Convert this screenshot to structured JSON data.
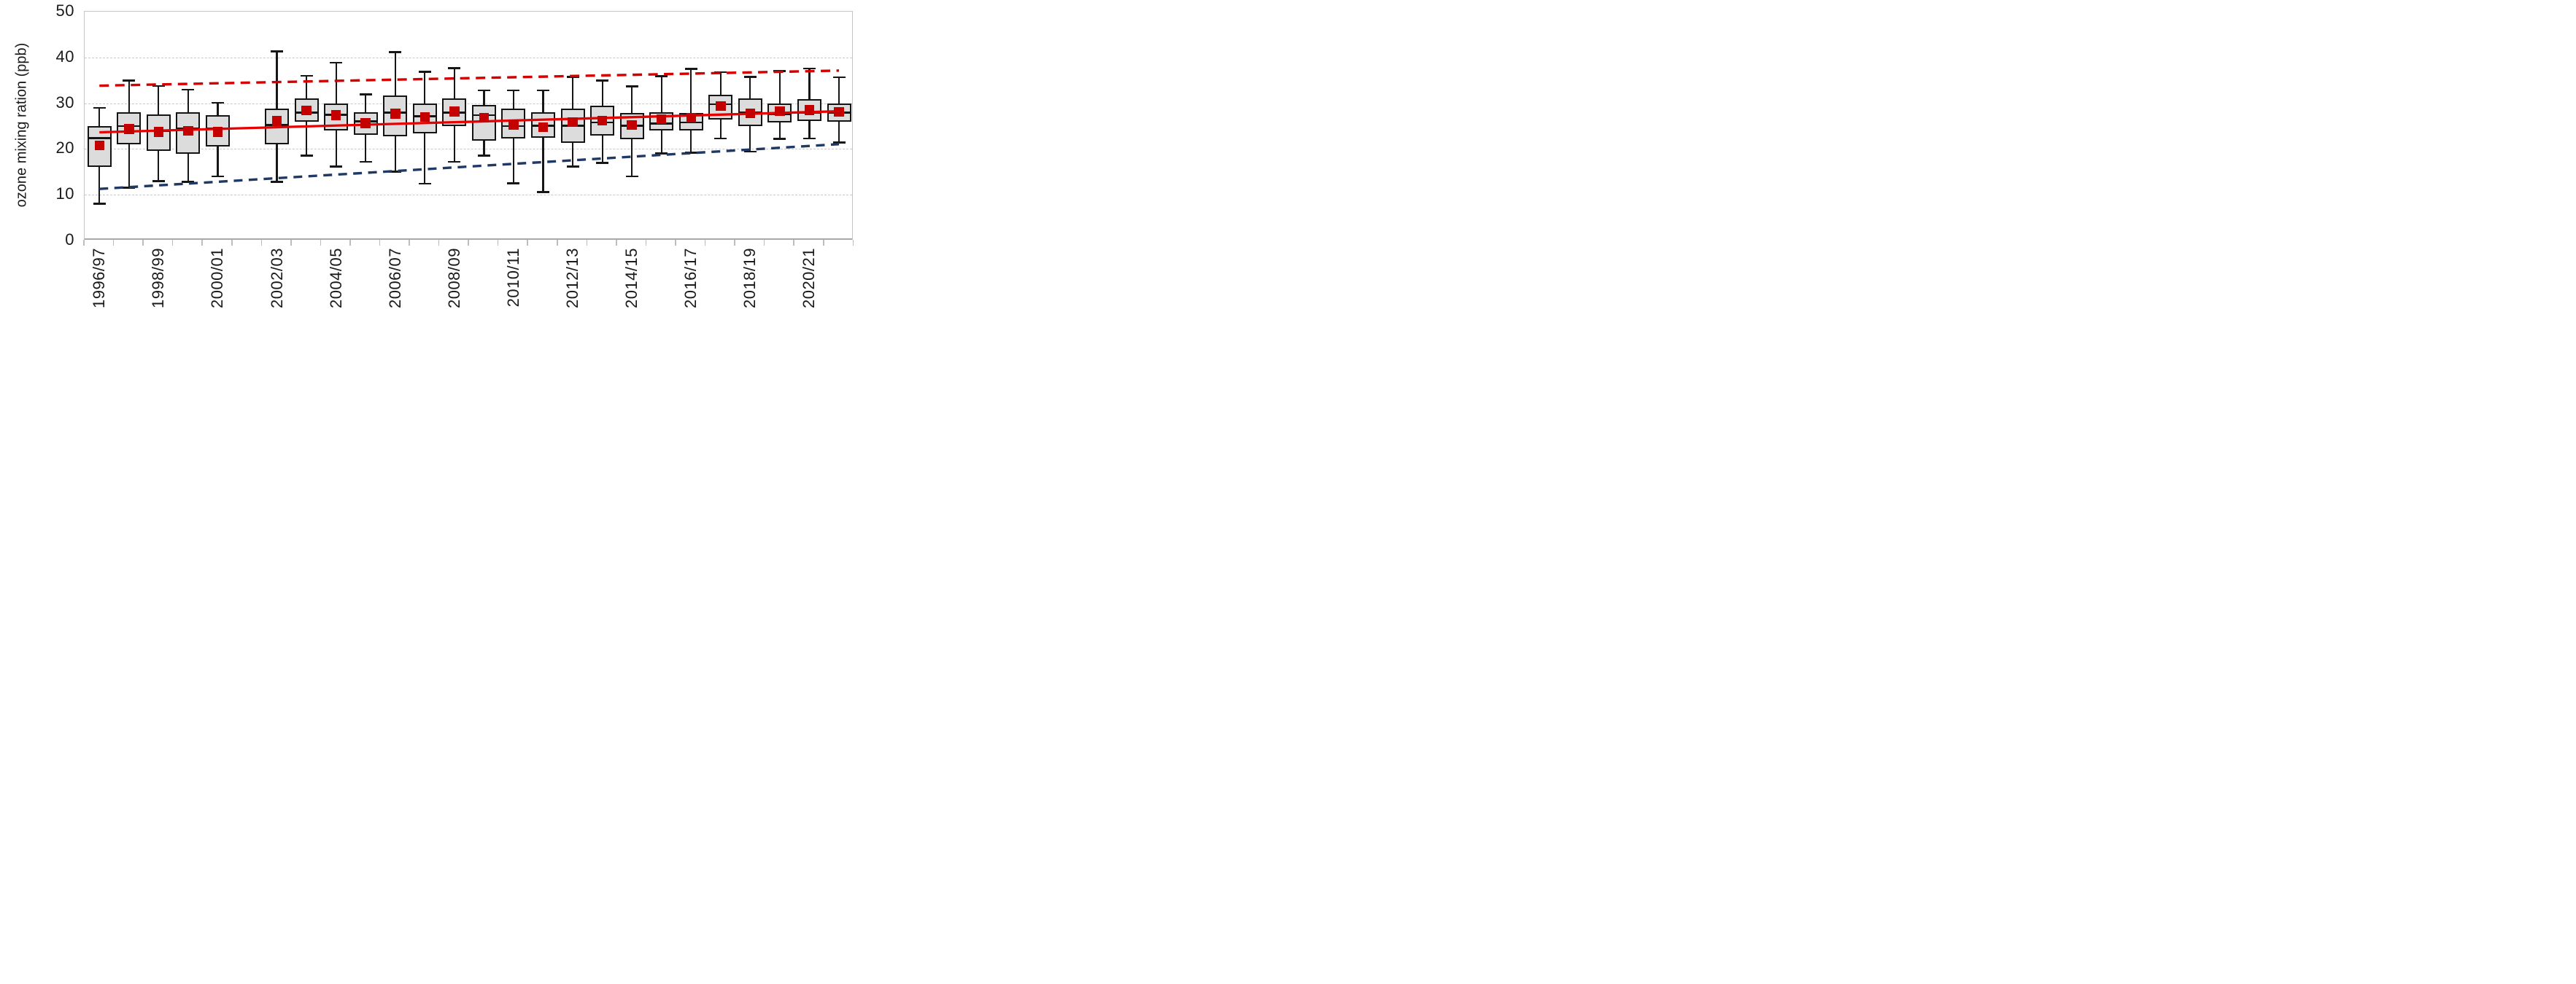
{
  "page": {
    "background": "#ffffff"
  },
  "chart_data": {
    "type": "box",
    "title": "",
    "xlabel": "",
    "ylabel": "ozone mixing ration (ppb)",
    "ylim": [
      0,
      50
    ],
    "yticks": [
      0,
      10,
      20,
      30,
      40,
      50
    ],
    "gridlines_at": [
      10,
      20,
      30,
      40
    ],
    "grid_style": "dashed",
    "legend_position": "none",
    "x_label_step": 2,
    "x_labels_shown": [
      "1996/97",
      "1998/99",
      "2000/01",
      "2002/03",
      "2004/05",
      "2006/07",
      "2008/09",
      "2010/11",
      "2012/13",
      "2014/15",
      "2016/17",
      "2018/19",
      "2020/21"
    ],
    "boxes": [
      {
        "year": "1996/97",
        "min": 8,
        "q1": 16,
        "median": 22.4,
        "mean": 20.8,
        "q3": 25,
        "max": 29
      },
      {
        "year": "1997/98",
        "min": 11.5,
        "q1": 21,
        "median": 25,
        "mean": 24.4,
        "q3": 28,
        "max": 35
      },
      {
        "year": "1998/99",
        "min": 13,
        "q1": 19.5,
        "median": 24,
        "mean": 23.7,
        "q3": 27.5,
        "max": 33.8
      },
      {
        "year": "1999/00",
        "min": 12.8,
        "q1": 19,
        "median": 24.4,
        "mean": 24,
        "q3": 28,
        "max": 33
      },
      {
        "year": "2000/01",
        "min": 14,
        "q1": 20.5,
        "median": 24.4,
        "mean": 23.7,
        "q3": 27.4,
        "max": 30.1
      },
      {
        "year": "2001/02",
        "min": null,
        "q1": null,
        "median": null,
        "mean": null,
        "q3": null,
        "max": null
      },
      {
        "year": "2002/03",
        "min": 12.8,
        "q1": 21,
        "median": 25.2,
        "mean": 26.1,
        "q3": 28.8,
        "max": 41.4
      },
      {
        "year": "2003/04",
        "min": 18.5,
        "q1": 26,
        "median": 28,
        "mean": 28.4,
        "q3": 31,
        "max": 36
      },
      {
        "year": "2004/05",
        "min": 16.2,
        "q1": 24.1,
        "median": 27.5,
        "mean": 27.4,
        "q3": 30,
        "max": 38.9
      },
      {
        "year": "2005/06",
        "min": 17.2,
        "q1": 23.1,
        "median": 26,
        "mean": 25.6,
        "q3": 28,
        "max": 31.9
      },
      {
        "year": "2006/07",
        "min": 15,
        "q1": 22.8,
        "median": 28,
        "mean": 27.7,
        "q3": 31.7,
        "max": 41.2
      },
      {
        "year": "2007/08",
        "min": 12.4,
        "q1": 23.4,
        "median": 27.2,
        "mean": 27,
        "q3": 30,
        "max": 36.9
      },
      {
        "year": "2008/09",
        "min": 17.2,
        "q1": 25,
        "median": 27.9,
        "mean": 28.2,
        "q3": 31,
        "max": 37.7
      },
      {
        "year": "2009/10",
        "min": 18.5,
        "q1": 21.8,
        "median": 27.4,
        "mean": 26.8,
        "q3": 29.7,
        "max": 32.8
      },
      {
        "year": "2010/11",
        "min": 12.5,
        "q1": 22.3,
        "median": 25,
        "mean": 25.3,
        "q3": 28.9,
        "max": 32.8
      },
      {
        "year": "2011/12",
        "min": 10.6,
        "q1": 22.5,
        "median": 25.1,
        "mean": 24.8,
        "q3": 28,
        "max": 32.8
      },
      {
        "year": "2012/13",
        "min": 16.2,
        "q1": 21.3,
        "median": 25.1,
        "mean": 25.9,
        "q3": 28.9,
        "max": 35.8
      },
      {
        "year": "2013/14",
        "min": 16.9,
        "q1": 23,
        "median": 25.8,
        "mean": 26.2,
        "q3": 29.4,
        "max": 35
      },
      {
        "year": "2014/15",
        "min": 14,
        "q1": 22.2,
        "median": 25.1,
        "mean": 25.2,
        "q3": 27.9,
        "max": 33.7
      },
      {
        "year": "2015/16",
        "min": 19,
        "q1": 24,
        "median": 25.5,
        "mean": 26.5,
        "q3": 28,
        "max": 35.9
      },
      {
        "year": "2016/17",
        "min": 19.2,
        "q1": 24.1,
        "median": 25.8,
        "mean": 26.8,
        "q3": 27.9,
        "max": 37.5
      },
      {
        "year": "2017/18",
        "min": 22.3,
        "q1": 26.5,
        "median": 29.8,
        "mean": 29.4,
        "q3": 31.9,
        "max": 36.8
      },
      {
        "year": "2018/19",
        "min": 19.4,
        "q1": 25,
        "median": 27.9,
        "mean": 27.8,
        "q3": 31,
        "max": 35.8
      },
      {
        "year": "2019/20",
        "min": 22.2,
        "q1": 25.8,
        "median": 27.6,
        "mean": 28.3,
        "q3": 29.9,
        "max": 37
      },
      {
        "year": "2020/21",
        "min": 22.3,
        "q1": 26.1,
        "median": 28,
        "mean": 28.5,
        "q3": 30.9,
        "max": 37.6
      },
      {
        "year": "2021/22",
        "min": 21.4,
        "q1": 26,
        "median": 28,
        "mean": 28.1,
        "q3": 29.9,
        "max": 35.7
      }
    ],
    "trend_line": {
      "label": "mean trend line",
      "start_value": 23.6,
      "end_value": 28.2,
      "style": "solid"
    },
    "upper_envelope": {
      "label": "upper dashed envelope",
      "start_value": 33.8,
      "end_value": 37.1,
      "style": "dashed"
    },
    "lower_envelope": {
      "label": "lower dashed envelope",
      "start_value": 11.2,
      "end_value": 21.0,
      "style": "dashed"
    },
    "colors": {
      "box_fill": "#dcdcdc",
      "box_border": "#141414",
      "median": "#141414",
      "mean_marker": "#c40000",
      "trend": "#e60000",
      "upper_envelope": "#d40000",
      "lower_envelope": "#1f3864",
      "gridline": "#c9c9c9",
      "frame": "#c6c6c6",
      "axis": "#a9a9a9",
      "text": "#1a1a1a"
    }
  }
}
